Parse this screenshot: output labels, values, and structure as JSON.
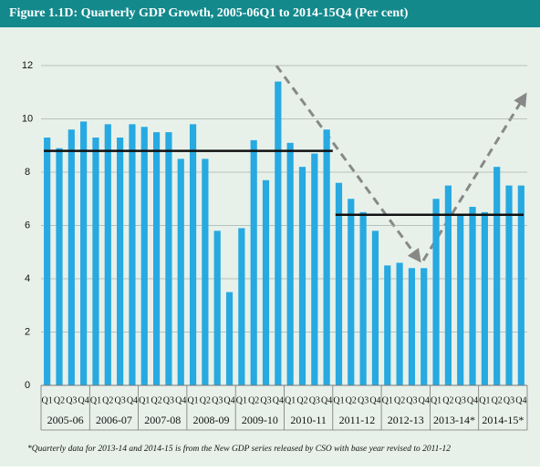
{
  "chart_data": {
    "type": "bar",
    "title": "Figure 1.1D:  Quarterly GDP Growth, 2005-06Q1 to 2014-15Q4 (Per cent)",
    "footnote": "*Quarterly data for 2013-14 and 2014-15 is from the New GDP series released by CSO with base year revised to 2011-12",
    "categories": [
      "Q1",
      "Q2",
      "Q3",
      "Q4",
      "Q1",
      "Q2",
      "Q3",
      "Q4",
      "Q1",
      "Q2",
      "Q3",
      "Q4",
      "Q1",
      "Q2",
      "Q3",
      "Q4",
      "Q1",
      "Q2",
      "Q3",
      "Q4",
      "Q1",
      "Q2",
      "Q3",
      "Q4",
      "Q1",
      "Q2",
      "Q3",
      "Q4",
      "Q1",
      "Q2",
      "Q3",
      "Q4",
      "Q1",
      "Q2",
      "Q3",
      "Q4",
      "Q1",
      "Q2",
      "Q3",
      "Q4"
    ],
    "groups": [
      "2005-06",
      "2006-07",
      "2007-08",
      "2008-09",
      "2009-10",
      "2010-11",
      "2011-12",
      "2012-13",
      "2013-14*",
      "2014-15*"
    ],
    "values": [
      9.3,
      8.9,
      9.6,
      9.9,
      9.3,
      9.8,
      9.3,
      9.8,
      9.7,
      9.5,
      9.5,
      8.5,
      9.8,
      8.5,
      5.8,
      3.5,
      5.9,
      9.2,
      7.7,
      11.4,
      9.1,
      8.2,
      8.7,
      9.6,
      7.6,
      7.0,
      6.5,
      5.8,
      4.5,
      4.6,
      4.4,
      4.4,
      7.0,
      7.5,
      6.4,
      6.7,
      6.5,
      8.2,
      7.5,
      7.5
    ],
    "color": "#27a9e1",
    "averages": [
      {
        "value": 8.8,
        "from": "2005-06",
        "to": "2010-11"
      },
      {
        "value": 6.4,
        "from": "2011-12",
        "to": "2014-15*"
      }
    ],
    "ylim": [
      0,
      12
    ],
    "yticks": [
      0,
      2,
      4,
      6,
      8,
      10,
      12
    ],
    "grid": true
  }
}
